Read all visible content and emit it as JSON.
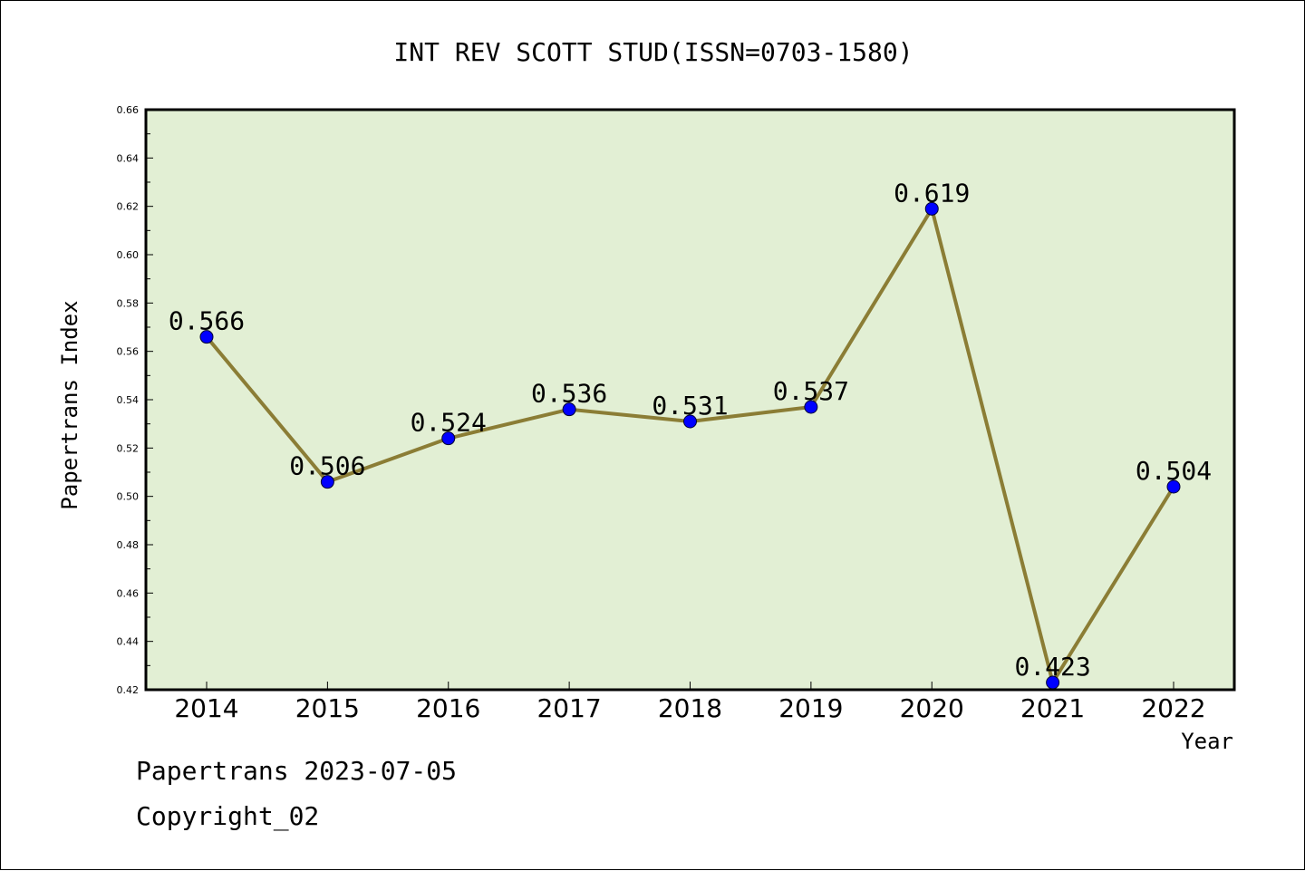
{
  "colors": {
    "plot_background": "#e2efd4",
    "line": "#8b7d35",
    "marker": "#0000ff",
    "axis": "#000000"
  },
  "footer": {
    "source": "Papertrans 2023-07-05",
    "copyright": "Copyright_02"
  },
  "chart_data": {
    "type": "line",
    "title": "INT REV SCOTT STUD(ISSN=0703-1580)",
    "xlabel": "Year",
    "ylabel": "Papertrans Index",
    "categories": [
      "2014",
      "2015",
      "2016",
      "2017",
      "2018",
      "2019",
      "2020",
      "2021",
      "2022"
    ],
    "series": [
      {
        "values": [
          0.566,
          0.506,
          0.524,
          0.536,
          0.531,
          0.537,
          0.619,
          0.423,
          0.504
        ],
        "value_labels": [
          "0.566",
          "0.506",
          "0.524",
          "0.536",
          "0.531",
          "0.537",
          "0.619",
          "0.423",
          "0.504"
        ]
      }
    ],
    "ylim": [
      0.42,
      0.66
    ],
    "yticks": [
      "0.42",
      "0.44",
      "0.46",
      "0.48",
      "0.50",
      "0.52",
      "0.54",
      "0.56",
      "0.58",
      "0.60",
      "0.62",
      "0.64",
      "0.66"
    ],
    "grid": false,
    "legend": "none"
  }
}
